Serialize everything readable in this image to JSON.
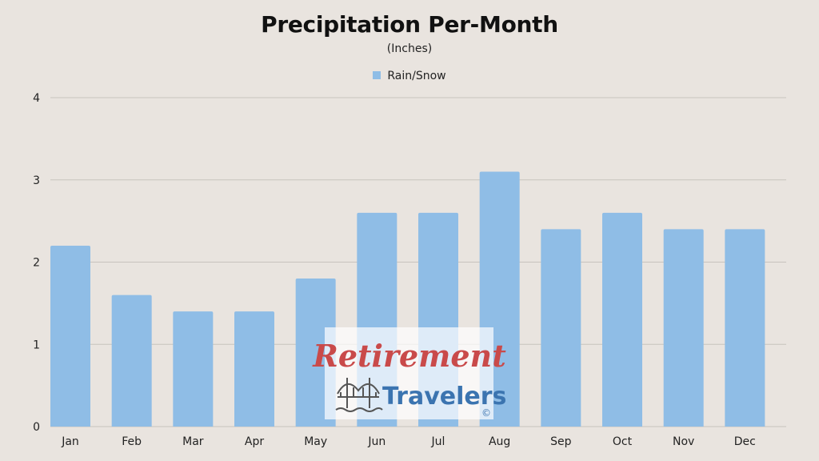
{
  "chart_data": {
    "type": "bar",
    "title": "Precipitation Per-Month",
    "subtitle": "(Inches)",
    "categories": [
      "Jan",
      "Feb",
      "Mar",
      "Apr",
      "May",
      "Jun",
      "Jul",
      "Aug",
      "Sep",
      "Oct",
      "Nov",
      "Dec"
    ],
    "series": [
      {
        "name": "Rain/Snow",
        "color": "#8fbde6",
        "values": [
          2.2,
          1.6,
          1.4,
          1.4,
          1.8,
          2.6,
          2.6,
          3.1,
          2.4,
          2.6,
          2.4,
          2.4
        ]
      }
    ],
    "ylim": [
      0,
      4
    ],
    "yticks": [
      "0",
      "1",
      "2",
      "3",
      "4"
    ],
    "grid": true,
    "legend_position": "top-center"
  },
  "watermark": {
    "line1": "Retirement",
    "line2": "Travelers",
    "mark": "©",
    "icon": "bridge-icon"
  },
  "colors": {
    "background": "#e9e4df",
    "gridline": "#c8c3be",
    "watermark_red": "#c94a4a",
    "watermark_blue": "#3b74b0"
  }
}
